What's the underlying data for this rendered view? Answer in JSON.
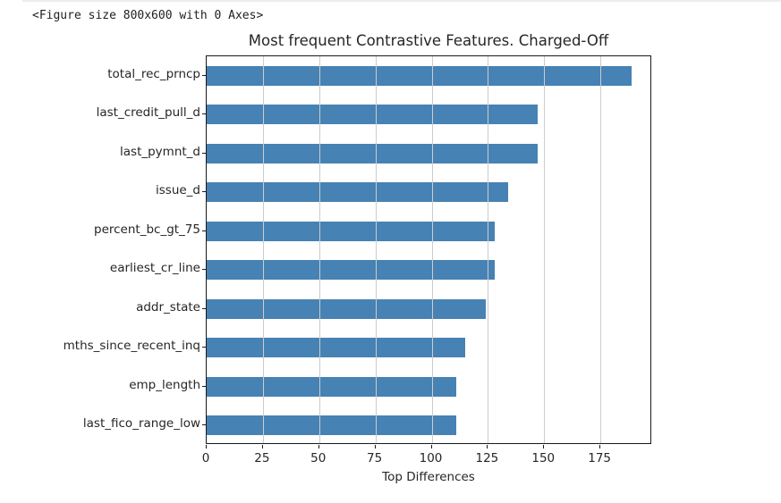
{
  "figure_note": "<Figure size 800x600 with 0 Axes>",
  "chart_data": {
    "type": "bar",
    "orientation": "horizontal",
    "title": "Most frequent Contrastive Features. Charged-Off",
    "xlabel": "Top Differences",
    "ylabel": "",
    "categories": [
      "total_rec_prncp",
      "last_credit_pull_d",
      "last_pymnt_d",
      "issue_d",
      "percent_bc_gt_75",
      "earliest_cr_line",
      "addr_state",
      "mths_since_recent_inq",
      "emp_length",
      "last_fico_range_low"
    ],
    "values": [
      189,
      147,
      147,
      134,
      128,
      128,
      124,
      115,
      111,
      111
    ],
    "xlim": [
      0,
      198
    ],
    "xticks": [
      0,
      25,
      50,
      75,
      100,
      125,
      150,
      175
    ],
    "grid": true,
    "legend": false,
    "bar_color": "#4682b4",
    "grid_color": "#cccccc",
    "text_color": "#262626"
  }
}
